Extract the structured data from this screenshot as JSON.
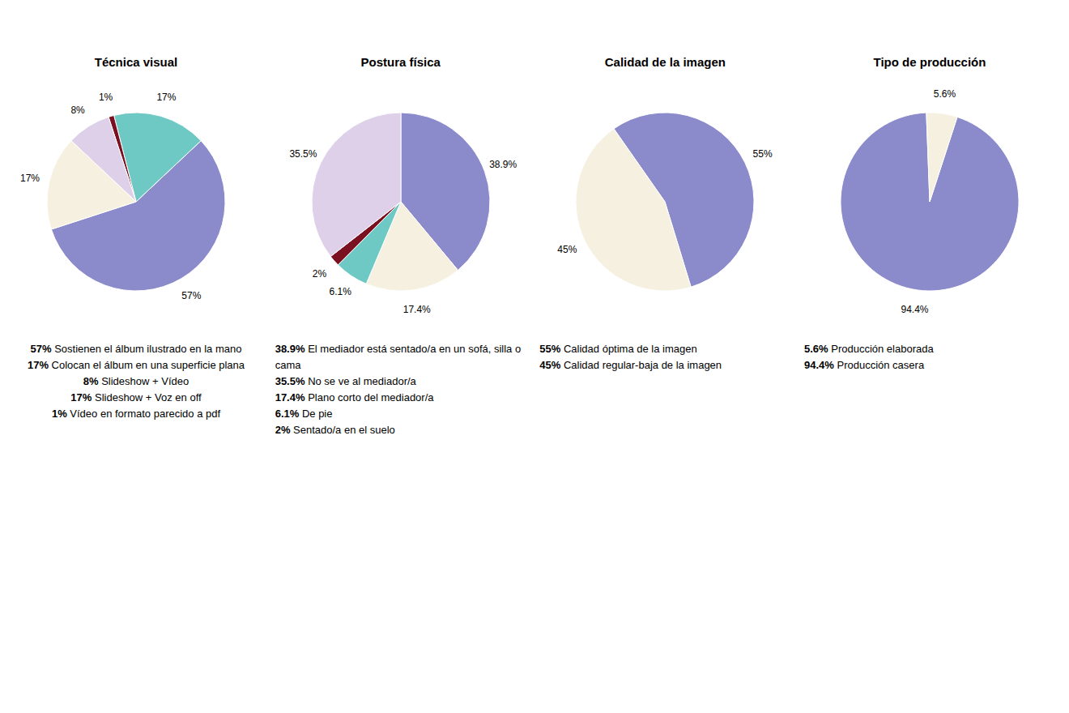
{
  "chart_data": [
    {
      "type": "pie",
      "title": "Técnica visual",
      "values": [
        57,
        17,
        1,
        8,
        17
      ],
      "value_labels": [
        "57%",
        "17%",
        "1%",
        "8%",
        "17%"
      ],
      "colors": [
        "#8b8bcc",
        "#6ec9c4",
        "#7a1020",
        "#ddd0e8",
        "#f5f0df"
      ],
      "annotations": [
        "57% Sostienen el álbum ilustrado en la mano",
        "17% Colocan el álbum en una superficie plana",
        "8% Slideshow + Vídeo",
        "17% Slideshow + Voz en off",
        "1% Vídeo en formato parecido a pdf"
      ]
    },
    {
      "type": "pie",
      "title": "Postura física",
      "values": [
        38.9,
        17.4,
        6.1,
        2,
        35.5
      ],
      "value_labels": [
        "38.9%",
        "17.4%",
        "6.1%",
        "2%",
        "35.5%"
      ],
      "colors": [
        "#8b8bcc",
        "#f5f0df",
        "#6ec9c4",
        "#7a1020",
        "#ddd0e8"
      ],
      "annotations": [
        "38.9% El mediador está sentado/a en un sofá, silla o cama",
        "35.5% No se ve al mediador/a",
        "17.4% Plano corto del mediador/a",
        "6.1% De pie",
        "2% Sentado/a en el suelo"
      ]
    },
    {
      "type": "pie",
      "title": "Calidad de la imagen",
      "values": [
        55,
        45
      ],
      "value_labels": [
        "55%",
        "45%"
      ],
      "colors": [
        "#8b8bcc",
        "#f5f0df"
      ],
      "annotations": [
        "55% Calidad óptima de la imagen",
        "45% Calidad regular-baja de la imagen"
      ]
    },
    {
      "type": "pie",
      "title": "Tipo de producción",
      "values": [
        94.4,
        5.6
      ],
      "value_labels": [
        "94.4%",
        "5.6%"
      ],
      "colors": [
        "#8b8bcc",
        "#f5f0df"
      ],
      "annotations": [
        "5.6% Producción elaborada",
        "94.4% Producción casera"
      ]
    }
  ]
}
